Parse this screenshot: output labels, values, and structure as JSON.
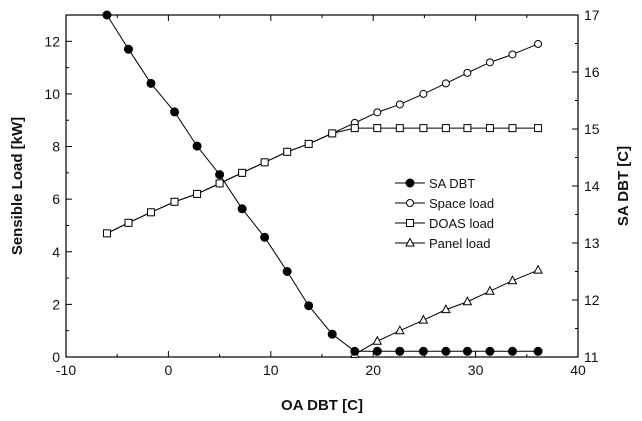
{
  "chart_data": {
    "type": "line",
    "xlabel": "OA DBT  [C]",
    "ylabel_left": "Sensible Load [kW]",
    "ylabel_right": "SA DBT  [C]",
    "xlim": [
      -10,
      40
    ],
    "ylim_left": [
      0,
      13
    ],
    "ylim_right": [
      11,
      17
    ],
    "x_ticks": [
      "-10",
      "0",
      "10",
      "20",
      "30",
      "40"
    ],
    "y_ticks_left": [
      "0",
      "2",
      "4",
      "6",
      "8",
      "10",
      "12"
    ],
    "y_ticks_right": [
      "11",
      "12",
      "13",
      "14",
      "15",
      "16",
      "17"
    ],
    "legend_position": "center-right",
    "series": [
      {
        "name": "SA DBT",
        "axis": "right",
        "marker": "filled-circle",
        "x": [
          -6,
          -3.9,
          -1.7,
          0.6,
          2.8,
          5,
          7.2,
          9.4,
          11.6,
          13.7,
          16,
          18.2,
          20.4,
          22.6,
          24.9,
          27.1,
          29.2,
          31.4,
          33.6,
          36.1
        ],
        "y": [
          17.0,
          16.4,
          15.8,
          15.3,
          14.7,
          14.2,
          13.6,
          13.1,
          12.5,
          11.9,
          11.4,
          11.1,
          11.1,
          11.1,
          11.1,
          11.1,
          11.1,
          11.1,
          11.1,
          11.1
        ]
      },
      {
        "name": "Space load",
        "axis": "left",
        "marker": "open-circle",
        "x": [
          -6,
          -3.9,
          -1.7,
          0.6,
          2.8,
          5,
          7.2,
          9.4,
          11.6,
          13.7,
          16,
          18.2,
          20.4,
          22.6,
          24.9,
          27.1,
          29.2,
          31.4,
          33.6,
          36.1
        ],
        "y": [
          4.7,
          5.1,
          5.5,
          5.9,
          6.2,
          6.6,
          7.0,
          7.4,
          7.8,
          8.1,
          8.5,
          8.9,
          9.3,
          9.6,
          10.0,
          10.4,
          10.8,
          11.2,
          11.5,
          11.9
        ]
      },
      {
        "name": "DOAS load",
        "axis": "left",
        "marker": "open-square",
        "x": [
          -6,
          -3.9,
          -1.7,
          0.6,
          2.8,
          5,
          7.2,
          9.4,
          11.6,
          13.7,
          16,
          18.2,
          20.4,
          22.6,
          24.9,
          27.1,
          29.2,
          31.4,
          33.6,
          36.1
        ],
        "y": [
          4.7,
          5.1,
          5.5,
          5.9,
          6.2,
          6.6,
          7.0,
          7.4,
          7.8,
          8.1,
          8.5,
          8.7,
          8.7,
          8.7,
          8.7,
          8.7,
          8.7,
          8.7,
          8.7,
          8.7
        ]
      },
      {
        "name": "Panel load",
        "axis": "left",
        "marker": "open-triangle",
        "x": [
          18.2,
          20.4,
          22.6,
          24.9,
          27.1,
          29.2,
          31.4,
          33.6,
          36.1
        ],
        "y": [
          0.1,
          0.6,
          1.0,
          1.4,
          1.8,
          2.1,
          2.5,
          2.9,
          3.3
        ]
      }
    ]
  }
}
